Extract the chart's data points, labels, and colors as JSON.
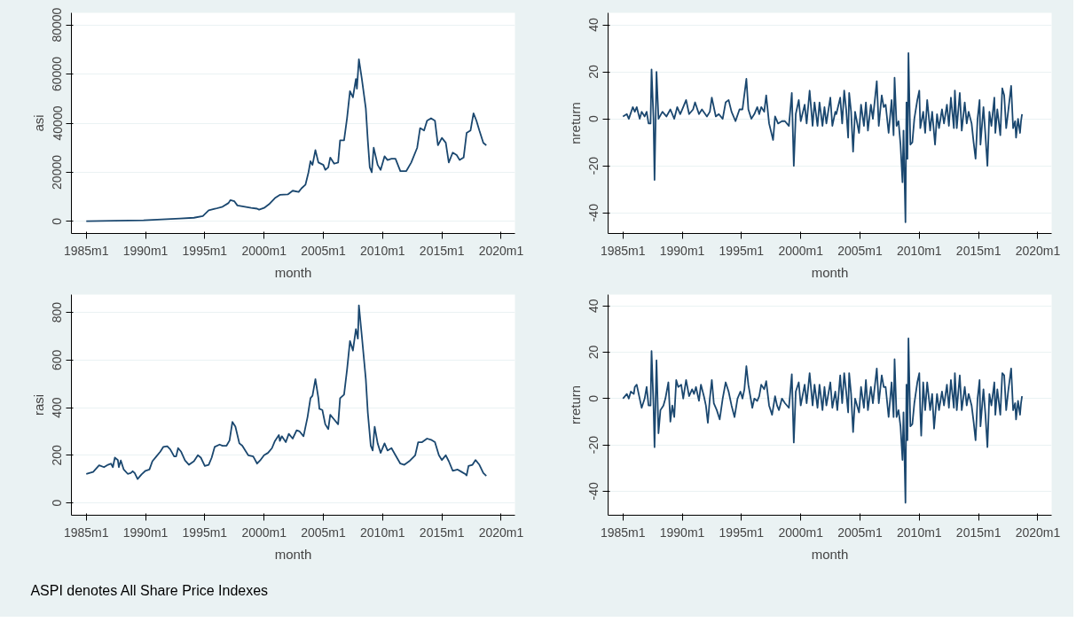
{
  "chart_data": [
    {
      "type": "line",
      "xlabel": "month",
      "ylabel": "asi",
      "grid": "y",
      "xlim": [
        "1983-10",
        "2021-03"
      ],
      "ylim": [
        -4900,
        84900
      ],
      "xticks": [
        {
          "value": "1985-01",
          "label": "1985m1"
        },
        {
          "value": "1990-01",
          "label": "1990m1"
        },
        {
          "value": "1995-01",
          "label": "1995m1"
        },
        {
          "value": "2000-01",
          "label": "2000m1"
        },
        {
          "value": "2005-01",
          "label": "2005m1"
        },
        {
          "value": "2010-01",
          "label": "2010m1"
        },
        {
          "value": "2015-01",
          "label": "2015m1"
        },
        {
          "value": "2020-01",
          "label": "2020m1"
        }
      ],
      "yticks": [
        0,
        20000,
        40000,
        60000,
        80000
      ],
      "series": [
        {
          "color": "#1a476f",
          "x": [
            "1985-01",
            "1989-11",
            "1992-12",
            "1994-02",
            "1994-11",
            "1995-05",
            "1995-12",
            "1996-07",
            "1997-01",
            "1997-03",
            "1997-07",
            "1997-10",
            "1998-12",
            "1999-06",
            "1999-08",
            "2000-01",
            "2000-06",
            "2000-12",
            "2001-05",
            "2002-01",
            "2002-06",
            "2002-12",
            "2003-03",
            "2003-07",
            "2003-10",
            "2003-12",
            "2004-02",
            "2004-05",
            "2004-08",
            "2005-01",
            "2005-03",
            "2005-06",
            "2005-08",
            "2005-12",
            "2006-04",
            "2006-06",
            "2006-10",
            "2007-01",
            "2007-04",
            "2007-07",
            "2007-10",
            "2007-11",
            "2008-01",
            "2008-04",
            "2008-08",
            "2008-10",
            "2008-12",
            "2009-02",
            "2009-04",
            "2009-08",
            "2009-11",
            "2010-03",
            "2010-06",
            "2010-10",
            "2011-02",
            "2011-07",
            "2012-01",
            "2012-06",
            "2012-12",
            "2013-03",
            "2013-07",
            "2013-10",
            "2014-02",
            "2014-06",
            "2014-09",
            "2015-01",
            "2015-05",
            "2015-08",
            "2015-12",
            "2016-04",
            "2016-07",
            "2016-11",
            "2017-02",
            "2017-06",
            "2017-09",
            "2017-12",
            "2018-03",
            "2018-07",
            "2018-10"
          ],
          "values": [
            100,
            500,
            1200,
            1500,
            2200,
            4500,
            5200,
            6000,
            7500,
            8700,
            8200,
            6500,
            5500,
            5200,
            4800,
            5500,
            7000,
            9500,
            10800,
            11000,
            12500,
            12000,
            13500,
            15000,
            20000,
            24500,
            23000,
            29000,
            24000,
            23000,
            21000,
            22000,
            26000,
            23500,
            24000,
            33000,
            33000,
            42000,
            53000,
            50500,
            58000,
            54000,
            66000,
            58000,
            46000,
            33000,
            22000,
            20000,
            30000,
            23000,
            21000,
            26500,
            25000,
            25500,
            25500,
            20500,
            20500,
            24000,
            30000,
            38000,
            37000,
            41000,
            42000,
            41000,
            31000,
            34000,
            32000,
            24000,
            28000,
            27000,
            25000,
            26000,
            36000,
            37000,
            44000,
            41000,
            37000,
            32000,
            31000
          ]
        }
      ]
    },
    {
      "type": "line",
      "xlabel": "month",
      "ylabel": "nreturn",
      "grid": "y",
      "xlim": [
        "1983-10",
        "2021-03"
      ],
      "ylim": [
        -48.8,
        45.1
      ],
      "xticks": [
        {
          "value": "1985-01",
          "label": "1985m1"
        },
        {
          "value": "1990-01",
          "label": "1990m1"
        },
        {
          "value": "1995-01",
          "label": "1995m1"
        },
        {
          "value": "2000-01",
          "label": "2000m1"
        },
        {
          "value": "2005-01",
          "label": "2005m1"
        },
        {
          "value": "2010-01",
          "label": "2010m1"
        },
        {
          "value": "2015-01",
          "label": "2015m1"
        },
        {
          "value": "2020-01",
          "label": "2020m1"
        }
      ],
      "yticks": [
        -40,
        -20,
        0,
        20,
        40
      ],
      "series": [
        {
          "color": "#1a476f",
          "x": [
            "1985-01",
            "1985-05",
            "1985-07",
            "1985-11",
            "1986-01",
            "1986-03",
            "1986-06",
            "1986-08",
            "1986-11",
            "1987-01",
            "1987-03",
            "1987-05",
            "1987-06",
            "1987-08",
            "1987-09",
            "1987-11",
            "1988-01",
            "1988-05",
            "1988-09",
            "1989-01",
            "1989-05",
            "1989-08",
            "1989-11",
            "1990-02",
            "1990-05",
            "1990-08",
            "1990-12",
            "1991-02",
            "1991-06",
            "1991-09",
            "1992-02",
            "1992-05",
            "1992-07",
            "1992-11",
            "1993-02",
            "1993-06",
            "1993-09",
            "1993-12",
            "1994-03",
            "1994-07",
            "1994-11",
            "1995-02",
            "1995-06",
            "1995-08",
            "1995-11",
            "1996-02",
            "1996-05",
            "1996-07",
            "1996-09",
            "1996-12",
            "1997-02",
            "1997-05",
            "1997-09",
            "1997-11",
            "1998-02",
            "1998-06",
            "1998-09",
            "1999-01",
            "1999-04",
            "1999-06",
            "1999-08",
            "1999-11",
            "2000-01",
            "2000-05",
            "2000-07",
            "2000-10",
            "2001-01",
            "2001-03",
            "2001-06",
            "2001-08",
            "2001-11",
            "2002-01",
            "2002-03",
            "2002-07",
            "2002-09",
            "2002-12",
            "2003-01",
            "2003-05",
            "2003-07",
            "2003-09",
            "2003-11",
            "2004-01",
            "2004-02",
            "2004-04",
            "2004-06",
            "2004-08",
            "2004-12",
            "2005-02",
            "2005-05",
            "2005-07",
            "2005-09",
            "2005-12",
            "2006-02",
            "2006-06",
            "2006-08",
            "2006-11",
            "2007-01",
            "2007-03",
            "2007-06",
            "2007-09",
            "2007-11",
            "2007-12",
            "2008-02",
            "2008-04",
            "2008-06",
            "2008-08",
            "2008-09",
            "2008-11",
            "2008-12",
            "2009-01",
            "2009-02",
            "2009-04",
            "2009-06",
            "2009-08",
            "2009-11",
            "2010-01",
            "2010-02",
            "2010-05",
            "2010-07",
            "2010-09",
            "2010-12",
            "2011-02",
            "2011-05",
            "2011-07",
            "2011-09",
            "2011-12",
            "2012-02",
            "2012-05",
            "2012-07",
            "2012-09",
            "2012-12",
            "2013-01",
            "2013-03",
            "2013-06",
            "2013-08",
            "2013-11",
            "2014-01",
            "2014-03",
            "2014-06",
            "2014-08",
            "2014-10",
            "2014-12",
            "2015-02",
            "2015-03",
            "2015-06",
            "2015-08",
            "2015-10",
            "2015-12",
            "2016-02",
            "2016-05",
            "2016-06",
            "2016-08",
            "2016-11",
            "2017-01",
            "2017-03",
            "2017-05",
            "2017-07",
            "2017-10",
            "2017-12",
            "2018-02",
            "2018-03",
            "2018-05",
            "2018-07",
            "2018-08",
            "2018-09"
          ],
          "values": [
            1,
            2,
            0,
            5,
            3,
            5,
            0,
            3,
            1,
            3,
            -2,
            -2,
            21,
            0,
            -26,
            20,
            0,
            3,
            1,
            4,
            0,
            5,
            2,
            5,
            8,
            2,
            4,
            7,
            2,
            4,
            1,
            3,
            9,
            1,
            2,
            0,
            7,
            8,
            3,
            -1,
            4,
            4,
            17,
            4,
            0,
            2,
            5,
            2,
            5,
            3,
            10,
            -2,
            -9,
            1,
            -2,
            -1,
            -1,
            -3,
            11,
            -20,
            2,
            8,
            -1,
            6,
            -2,
            12,
            -3,
            7,
            -3,
            7,
            -3,
            5,
            -2,
            9,
            -3,
            3,
            2,
            9,
            -2,
            12,
            4,
            -8,
            11,
            3,
            -14,
            3,
            -6,
            6,
            -3,
            7,
            -5,
            6,
            0,
            16,
            -3,
            10,
            5,
            6,
            -6,
            8,
            -7,
            17.5,
            -3,
            -1,
            -11,
            -27,
            -5,
            -44,
            7,
            -17,
            28,
            -11,
            -10,
            0,
            8,
            12,
            -4,
            3,
            -6,
            8,
            -5,
            3,
            -11,
            2,
            -4,
            4,
            -2,
            6,
            -3,
            9,
            -4,
            12,
            -4,
            11,
            -5,
            7,
            -2,
            3,
            -2,
            -10,
            -17,
            0,
            8,
            -11,
            5,
            -7,
            -20,
            3,
            -3,
            9,
            -6,
            4,
            -7,
            13,
            10,
            -4,
            3,
            14,
            -4,
            -1,
            -8,
            0,
            -6,
            -1,
            2
          ]
        }
      ]
    },
    {
      "type": "line",
      "xlabel": "month",
      "ylabel": "rasi",
      "grid": "y",
      "xlim": [
        "1983-10",
        "2021-03"
      ],
      "ylim": [
        -52,
        875
      ],
      "xticks": [
        {
          "value": "1985-01",
          "label": "1985m1"
        },
        {
          "value": "1990-01",
          "label": "1990m1"
        },
        {
          "value": "1995-01",
          "label": "1995m1"
        },
        {
          "value": "2000-01",
          "label": "2000m1"
        },
        {
          "value": "2005-01",
          "label": "2005m1"
        },
        {
          "value": "2010-01",
          "label": "2010m1"
        },
        {
          "value": "2015-01",
          "label": "2015m1"
        },
        {
          "value": "2020-01",
          "label": "2020m1"
        }
      ],
      "yticks": [
        0,
        200,
        400,
        600,
        800
      ],
      "series": [
        {
          "color": "#1a476f",
          "x": [
            "1985-01",
            "1985-08",
            "1986-02",
            "1986-07",
            "1986-11",
            "1987-02",
            "1987-04",
            "1987-06",
            "1987-09",
            "1987-10",
            "1987-12",
            "1988-03",
            "1988-07",
            "1988-10",
            "1988-12",
            "1989-02",
            "1989-05",
            "1989-09",
            "1990-01",
            "1990-05",
            "1990-08",
            "1990-12",
            "1991-04",
            "1991-07",
            "1991-11",
            "1992-02",
            "1992-06",
            "1992-08",
            "1992-10",
            "1993-01",
            "1993-05",
            "1993-09",
            "1994-02",
            "1994-06",
            "1994-09",
            "1995-01",
            "1995-05",
            "1995-08",
            "1995-11",
            "1996-04",
            "1996-07",
            "1996-11",
            "1997-02",
            "1997-05",
            "1997-08",
            "1997-12",
            "1998-03",
            "1998-09",
            "1999-02",
            "1999-06",
            "1999-09",
            "2000-01",
            "2000-05",
            "2000-09",
            "2000-12",
            "2001-04",
            "2001-05",
            "2001-07",
            "2001-11",
            "2002-02",
            "2002-06",
            "2002-10",
            "2003-01",
            "2003-05",
            "2003-09",
            "2003-12",
            "2004-02",
            "2004-05",
            "2004-08",
            "2004-09",
            "2004-12",
            "2005-03",
            "2005-06",
            "2005-08",
            "2005-12",
            "2006-04",
            "2006-06",
            "2006-10",
            "2007-01",
            "2007-04",
            "2007-07",
            "2007-10",
            "2007-12",
            "2008-01",
            "2008-04",
            "2008-08",
            "2008-10",
            "2009-01",
            "2009-03",
            "2009-05",
            "2009-08",
            "2009-11",
            "2010-03",
            "2010-06",
            "2010-10",
            "2011-02",
            "2011-07",
            "2011-11",
            "2012-04",
            "2012-10",
            "2013-01",
            "2013-05",
            "2013-10",
            "2014-02",
            "2014-06",
            "2014-10",
            "2015-01",
            "2015-05",
            "2015-08",
            "2015-12",
            "2016-05",
            "2016-09",
            "2017-01",
            "2017-02",
            "2017-04",
            "2017-08",
            "2017-11",
            "2018-03",
            "2018-07",
            "2018-10"
          ],
          "values": [
            122,
            130,
            158,
            150,
            160,
            165,
            150,
            190,
            180,
            150,
            178,
            140,
            122,
            125,
            133,
            125,
            100,
            120,
            135,
            140,
            175,
            195,
            215,
            235,
            238,
            225,
            195,
            195,
            230,
            215,
            178,
            160,
            175,
            200,
            190,
            155,
            160,
            190,
            235,
            245,
            240,
            240,
            262,
            340,
            320,
            250,
            240,
            200,
            195,
            165,
            178,
            200,
            210,
            230,
            260,
            285,
            260,
            280,
            255,
            290,
            270,
            305,
            300,
            280,
            360,
            440,
            450,
            520,
            440,
            395,
            390,
            330,
            310,
            370,
            350,
            330,
            440,
            455,
            560,
            680,
            640,
            730,
            690,
            830,
            700,
            520,
            380,
            240,
            220,
            320,
            250,
            210,
            250,
            220,
            230,
            200,
            165,
            160,
            175,
            200,
            255,
            255,
            270,
            265,
            255,
            200,
            180,
            200,
            175,
            135,
            140,
            130,
            120,
            115,
            155,
            160,
            180,
            160,
            125,
            113
          ]
        }
      ]
    },
    {
      "type": "line",
      "xlabel": "month",
      "ylabel": "rreturn",
      "grid": "y",
      "xlim": [
        "1983-10",
        "2021-03"
      ],
      "ylim": [
        -50.4,
        44.9
      ],
      "xticks": [
        {
          "value": "1985-01",
          "label": "1985m1"
        },
        {
          "value": "1990-01",
          "label": "1990m1"
        },
        {
          "value": "1995-01",
          "label": "1995m1"
        },
        {
          "value": "2000-01",
          "label": "2000m1"
        },
        {
          "value": "2005-01",
          "label": "2005m1"
        },
        {
          "value": "2010-01",
          "label": "2010m1"
        },
        {
          "value": "2015-01",
          "label": "2015m1"
        },
        {
          "value": "2020-01",
          "label": "2020m1"
        }
      ],
      "yticks": [
        -40,
        -20,
        0,
        20,
        40
      ],
      "series": [
        {
          "color": "#1a476f",
          "x": [
            "1985-01",
            "1985-05",
            "1985-07",
            "1985-09",
            "1985-12",
            "1986-01",
            "1986-03",
            "1986-06",
            "1986-08",
            "1986-11",
            "1987-01",
            "1987-03",
            "1987-05",
            "1987-06",
            "1987-08",
            "1987-09",
            "1987-11",
            "1988-01",
            "1988-03",
            "1988-06",
            "1988-08",
            "1988-11",
            "1989-01",
            "1989-03",
            "1989-05",
            "1989-07",
            "1989-09",
            "1989-12",
            "1990-02",
            "1990-05",
            "1990-08",
            "1990-11",
            "1991-01",
            "1991-03",
            "1991-06",
            "1991-08",
            "1991-11",
            "1992-01",
            "1992-03",
            "1992-05",
            "1992-07",
            "1992-09",
            "1992-12",
            "1993-03",
            "1993-06",
            "1993-09",
            "1993-12",
            "1994-03",
            "1994-06",
            "1994-09",
            "1994-12",
            "1995-02",
            "1995-04",
            "1995-06",
            "1995-08",
            "1995-12",
            "1996-02",
            "1996-05",
            "1996-07",
            "1996-09",
            "1996-12",
            "1997-02",
            "1997-05",
            "1997-08",
            "1997-11",
            "1998-01",
            "1998-03",
            "1998-06",
            "1998-09",
            "1999-01",
            "1999-04",
            "1999-06",
            "1999-08",
            "1999-11",
            "2000-01",
            "2000-05",
            "2000-07",
            "2000-10",
            "2001-01",
            "2001-03",
            "2001-06",
            "2001-08",
            "2001-11",
            "2002-01",
            "2002-03",
            "2002-07",
            "2002-09",
            "2002-12",
            "2003-02",
            "2003-05",
            "2003-07",
            "2003-09",
            "2003-11",
            "2004-01",
            "2004-02",
            "2004-04",
            "2004-06",
            "2004-08",
            "2004-12",
            "2005-02",
            "2005-05",
            "2005-07",
            "2005-09",
            "2005-12",
            "2006-02",
            "2006-06",
            "2006-08",
            "2006-11",
            "2007-01",
            "2007-03",
            "2007-06",
            "2007-09",
            "2007-11",
            "2007-12",
            "2008-02",
            "2008-04",
            "2008-06",
            "2008-08",
            "2008-09",
            "2008-11",
            "2008-12",
            "2009-01",
            "2009-02",
            "2009-04",
            "2009-06",
            "2009-08",
            "2009-11",
            "2010-01",
            "2010-02",
            "2010-03",
            "2010-05",
            "2010-07",
            "2010-09",
            "2010-12",
            "2011-02",
            "2011-04",
            "2011-07",
            "2011-09",
            "2011-12",
            "2012-02",
            "2012-05",
            "2012-07",
            "2012-09",
            "2012-12",
            "2013-01",
            "2013-03",
            "2013-06",
            "2013-08",
            "2013-11",
            "2014-01",
            "2014-03",
            "2014-06",
            "2014-08",
            "2014-10",
            "2014-12",
            "2015-02",
            "2015-03",
            "2015-06",
            "2015-08",
            "2015-10",
            "2015-12",
            "2016-02",
            "2016-05",
            "2016-06",
            "2016-08",
            "2016-11",
            "2017-01",
            "2017-03",
            "2017-05",
            "2017-07",
            "2017-10",
            "2017-12",
            "2018-02",
            "2018-03",
            "2018-05",
            "2018-07",
            "2018-08",
            "2018-09"
          ],
          "values": [
            0,
            2,
            0,
            3,
            2,
            5,
            6,
            0,
            -4,
            0,
            5,
            -3,
            -3,
            20.5,
            -3,
            -21,
            16.5,
            -15,
            -5,
            -3,
            0,
            7,
            -10,
            -3,
            -8,
            8,
            5,
            6,
            0,
            8,
            1,
            4,
            2,
            5,
            -1,
            6,
            1,
            -3,
            -10.5,
            0,
            8,
            -2,
            -5,
            -9,
            0,
            7,
            3,
            -3,
            -8,
            0,
            3,
            0,
            4,
            14,
            6,
            -4,
            0,
            -1,
            1,
            6,
            4,
            7.5,
            -3,
            -7,
            1,
            -3,
            -5,
            0,
            -2,
            -4,
            10.5,
            -19,
            3,
            7,
            -3,
            6,
            -2,
            11,
            -3,
            6,
            -4,
            6,
            -5,
            5,
            -3,
            7,
            -4,
            3,
            -5,
            10,
            -2,
            11,
            3,
            -6,
            11,
            2,
            -14.5,
            0,
            -6,
            5,
            -4,
            8,
            -5,
            5,
            -2,
            13,
            -2,
            10,
            5,
            5,
            -8,
            7,
            -8,
            17,
            -8,
            -5,
            -12,
            -26.5,
            -6,
            -45,
            6,
            -18,
            26,
            -12,
            -11,
            -2,
            7,
            11,
            -6,
            -16,
            7,
            -5,
            7,
            -5,
            2,
            -13,
            2,
            -5,
            3,
            -3,
            6,
            -4,
            8,
            -4,
            11,
            -5,
            10,
            -5,
            5,
            -3,
            2,
            -3,
            -10,
            -18,
            0,
            8,
            -12,
            4,
            -7,
            -21,
            2,
            -3,
            7,
            -7,
            4,
            -7,
            11,
            10,
            -5,
            3,
            13,
            -5,
            -2,
            -9,
            -1,
            -7,
            -2,
            1
          ]
        }
      ]
    },
    {
      "type": "other",
      "annotations": [
        "ASPI denotes All Share Price Indexes"
      ]
    }
  ]
}
